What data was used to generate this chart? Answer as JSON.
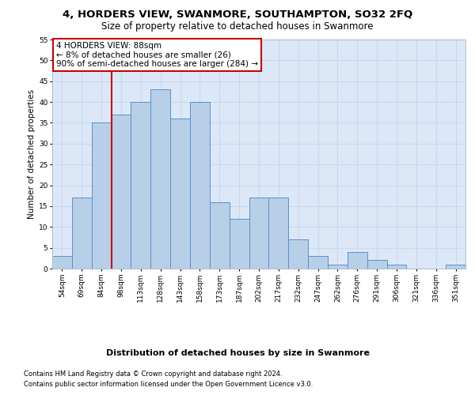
{
  "title": "4, HORDERS VIEW, SWANMORE, SOUTHAMPTON, SO32 2FQ",
  "subtitle": "Size of property relative to detached houses in Swanmore",
  "xlabel": "Distribution of detached houses by size in Swanmore",
  "ylabel": "Number of detached properties",
  "categories": [
    "54sqm",
    "69sqm",
    "84sqm",
    "98sqm",
    "113sqm",
    "128sqm",
    "143sqm",
    "158sqm",
    "173sqm",
    "187sqm",
    "202sqm",
    "217sqm",
    "232sqm",
    "247sqm",
    "262sqm",
    "276sqm",
    "291sqm",
    "306sqm",
    "321sqm",
    "336sqm",
    "351sqm"
  ],
  "values": [
    3,
    17,
    35,
    37,
    40,
    43,
    36,
    40,
    16,
    12,
    17,
    17,
    7,
    3,
    1,
    4,
    2,
    1,
    0,
    0,
    1
  ],
  "bar_color": "#b8cfe8",
  "bar_edge_color": "#5b8fc9",
  "vline_after_index": 2,
  "vline_color": "#cc0000",
  "annotation_text": "4 HORDERS VIEW: 88sqm\n← 8% of detached houses are smaller (26)\n90% of semi-detached houses are larger (284) →",
  "annotation_box_facecolor": "#ffffff",
  "annotation_box_edgecolor": "#cc0000",
  "ylim": [
    0,
    55
  ],
  "yticks": [
    0,
    5,
    10,
    15,
    20,
    25,
    30,
    35,
    40,
    45,
    50,
    55
  ],
  "grid_color": "#c8d8ee",
  "bg_color": "#dce8f8",
  "footer_line1": "Contains HM Land Registry data © Crown copyright and database right 2024.",
  "footer_line2": "Contains public sector information licensed under the Open Government Licence v3.0.",
  "title_fontsize": 9.5,
  "subtitle_fontsize": 8.5,
  "ylabel_fontsize": 7.5,
  "xlabel_fontsize": 8,
  "tick_fontsize": 6.5,
  "annotation_fontsize": 7.5,
  "footer_fontsize": 6.0
}
